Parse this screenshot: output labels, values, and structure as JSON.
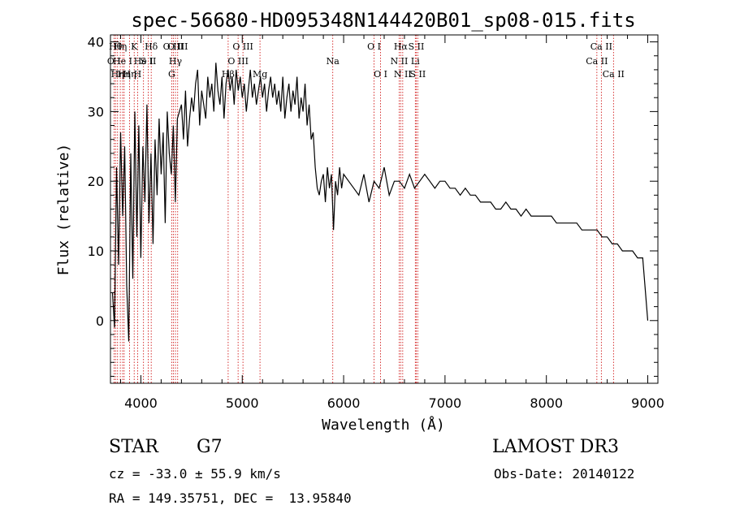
{
  "chart_data": {
    "type": "line",
    "title": "spec-56680-HD095348N144420B01_sp08-015.fits",
    "xlabel": "Wavelength (Å)",
    "ylabel": "Flux (relative)",
    "xlim": [
      3700,
      9100
    ],
    "ylim": [
      -9,
      41
    ],
    "xticks": [
      4000,
      5000,
      6000,
      7000,
      8000,
      9000
    ],
    "yticks": [
      0,
      10,
      20,
      30,
      40
    ],
    "grid": false,
    "line_color": "#000000",
    "marker_color": "#cc0000",
    "series": [
      {
        "x": [
          3720,
          3740,
          3760,
          3780,
          3800,
          3820,
          3840,
          3860,
          3880,
          3900,
          3920,
          3940,
          3960,
          3980,
          4000,
          4020,
          4040,
          4060,
          4080,
          4100,
          4120,
          4140,
          4160,
          4180,
          4200,
          4220,
          4240,
          4260,
          4280,
          4300,
          4320,
          4340,
          4360,
          4380,
          4400,
          4420,
          4440,
          4460,
          4480,
          4500,
          4520,
          4540,
          4560,
          4580,
          4600,
          4620,
          4640,
          4660,
          4680,
          4700,
          4720,
          4740,
          4760,
          4780,
          4800,
          4820,
          4840,
          4860,
          4880,
          4900,
          4920,
          4940,
          4960,
          4980,
          5000,
          5020,
          5040,
          5060,
          5080,
          5100,
          5120,
          5140,
          5160,
          5180,
          5200,
          5220,
          5240,
          5260,
          5280,
          5300,
          5320,
          5340,
          5360,
          5380,
          5400,
          5420,
          5440,
          5460,
          5480,
          5500,
          5520,
          5540,
          5560,
          5580,
          5600,
          5620,
          5640,
          5660,
          5680,
          5700,
          5720,
          5740,
          5760,
          5780,
          5800,
          5820,
          5840,
          5860,
          5880,
          5900,
          5920,
          5940,
          5960,
          5980,
          6000,
          6050,
          6100,
          6150,
          6200,
          6250,
          6300,
          6350,
          6400,
          6450,
          6500,
          6550,
          6600,
          6650,
          6700,
          6750,
          6800,
          6850,
          6900,
          6950,
          7000,
          7050,
          7100,
          7150,
          7200,
          7250,
          7300,
          7350,
          7400,
          7450,
          7500,
          7550,
          7600,
          7650,
          7700,
          7750,
          7800,
          7850,
          7900,
          7950,
          8000,
          8050,
          8100,
          8150,
          8200,
          8250,
          8300,
          8350,
          8400,
          8450,
          8500,
          8550,
          8600,
          8650,
          8700,
          8750,
          8800,
          8850,
          8900,
          8950,
          9000
        ],
        "y": [
          4,
          -1,
          22,
          8,
          27,
          15,
          25,
          5,
          -3,
          24,
          6,
          30,
          12,
          28,
          9,
          25,
          17,
          31,
          14,
          24,
          11,
          26,
          18,
          29,
          21,
          27,
          14,
          30,
          24,
          21,
          28,
          17,
          29,
          30,
          31,
          26,
          33,
          25,
          29,
          32,
          30,
          34,
          36,
          28,
          33,
          31,
          29,
          35,
          32,
          34,
          30,
          37,
          33,
          31,
          35,
          29,
          34,
          36,
          33,
          35,
          31,
          36,
          33,
          35,
          32,
          34,
          30,
          33,
          36,
          32,
          34,
          31,
          33,
          35,
          32,
          34,
          30,
          33,
          35,
          32,
          34,
          31,
          33,
          30,
          35,
          29,
          32,
          34,
          30,
          33,
          31,
          35,
          29,
          32,
          30,
          34,
          28,
          31,
          26,
          27,
          22,
          19,
          18,
          20,
          21,
          17,
          22,
          19,
          21,
          13,
          20,
          18,
          22,
          19,
          21,
          20,
          19,
          18,
          21,
          17,
          20,
          19,
          22,
          18,
          20,
          20,
          19,
          21,
          19,
          20,
          21,
          20,
          19,
          20,
          20,
          19,
          19,
          18,
          19,
          18,
          18,
          17,
          17,
          17,
          16,
          16,
          17,
          16,
          16,
          15,
          16,
          15,
          15,
          15,
          15,
          15,
          14,
          14,
          14,
          14,
          14,
          13,
          13,
          13,
          13,
          12,
          12,
          11,
          11,
          10,
          10,
          10,
          9,
          9,
          0
        ]
      }
    ],
    "lines": [
      {
        "x": 3735,
        "label": "O I",
        "row": 1
      },
      {
        "x": 3750,
        "label": "Hθ",
        "row": 0
      },
      {
        "x": 3770,
        "label": "Hη",
        "row": 2
      },
      {
        "x": 3797,
        "label": "Hη",
        "row": 0
      },
      {
        "x": 3820,
        "label": "He I",
        "row": 1
      },
      {
        "x": 3835,
        "label": "Hη",
        "row": 2
      },
      {
        "x": 3889,
        "label": "Hη",
        "row": 2
      },
      {
        "x": 3934,
        "label": "K",
        "row": 0
      },
      {
        "x": 3968,
        "label": "H",
        "row": 2
      },
      {
        "x": 4026,
        "label": "He I",
        "row": 1
      },
      {
        "x": 4072,
        "label": "S II",
        "row": 1
      },
      {
        "x": 4102,
        "label": "Hδ",
        "row": 0
      },
      {
        "x": 4304,
        "label": "G",
        "row": 2
      },
      {
        "x": 4320,
        "label": "O III",
        "row": 0
      },
      {
        "x": 4341,
        "label": "Hγ",
        "row": 1
      },
      {
        "x": 4363,
        "label": "O III",
        "row": 0
      },
      {
        "x": 4861,
        "label": "Hβ",
        "row": 2
      },
      {
        "x": 4959,
        "label": "O III",
        "row": 1
      },
      {
        "x": 5007,
        "label": "O III",
        "row": 0
      },
      {
        "x": 5175,
        "label": "Mg",
        "row": 2
      },
      {
        "x": 5893,
        "label": "Na",
        "row": 1
      },
      {
        "x": 6300,
        "label": "O I",
        "row": 0
      },
      {
        "x": 6364,
        "label": "O I",
        "row": 2
      },
      {
        "x": 6548,
        "label": "N II",
        "row": 1
      },
      {
        "x": 6563,
        "label": "Hα",
        "row": 0
      },
      {
        "x": 6583,
        "label": "N II",
        "row": 2
      },
      {
        "x": 6707,
        "label": "Li",
        "row": 1
      },
      {
        "x": 6716,
        "label": "S II",
        "row": 0
      },
      {
        "x": 6731,
        "label": "S II",
        "row": 2
      },
      {
        "x": 8498,
        "label": "Ca II",
        "row": 1
      },
      {
        "x": 8542,
        "label": "Ca II",
        "row": 0
      },
      {
        "x": 8662,
        "label": "Ca II",
        "row": 2
      }
    ]
  },
  "info": {
    "class_label": "STAR",
    "subclass_label": "G7",
    "survey": "LAMOST DR3",
    "cz": "cz = -33.0 ± 55.9 km/s",
    "obs_date": "Obs-Date: 20140122",
    "coords": "RA = 149.35751, DEC =  13.95840"
  }
}
